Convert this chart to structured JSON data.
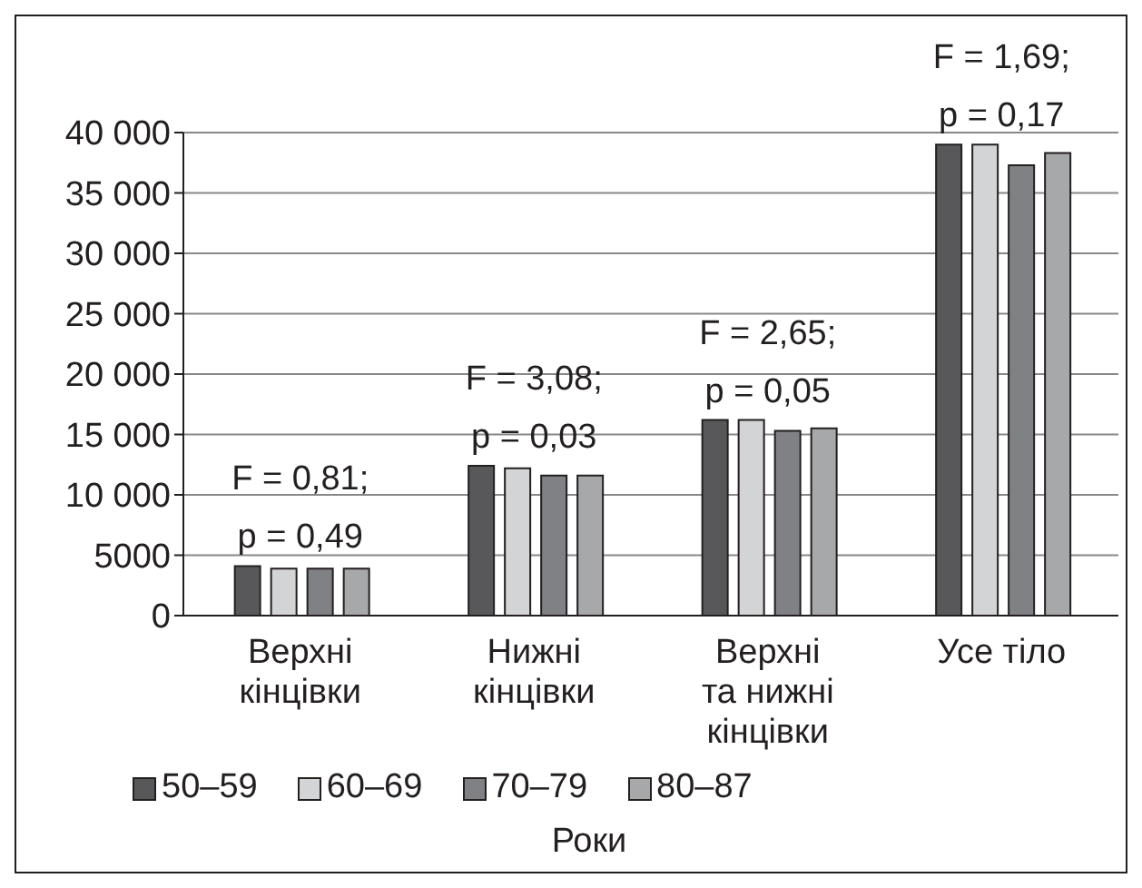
{
  "chart_data": {
    "type": "bar",
    "categories": [
      "Верхні кінцівки",
      "Нижні кінцівки",
      "Верхні та нижні кінцівки",
      "Усе тіло"
    ],
    "series": [
      {
        "name": "50–59",
        "color": "#58585a",
        "values": [
          4100,
          12400,
          16200,
          39000
        ]
      },
      {
        "name": "60–69",
        "color": "#d3d4d6",
        "values": [
          3900,
          12200,
          16200,
          39000
        ]
      },
      {
        "name": "70–79",
        "color": "#808184",
        "values": [
          3900,
          11600,
          15300,
          37300
        ]
      },
      {
        "name": "80–87",
        "color": "#a7a8aa",
        "values": [
          3900,
          11600,
          15500,
          38300
        ]
      }
    ],
    "ylim": [
      0,
      40000
    ],
    "yticks": [
      0,
      5000,
      {
        "value": 10000,
        "label": "10 000"
      },
      {
        "value": 15000,
        "label": "15 000"
      },
      {
        "value": 20000,
        "label": "20 000"
      },
      {
        "value": 25000,
        "label": "25 000"
      },
      {
        "value": 30000,
        "label": "30 000"
      },
      {
        "value": 35000,
        "label": "35 000"
      },
      {
        "value": 40000,
        "label": "40 000"
      }
    ],
    "grid": "y",
    "legend": "bottom",
    "xlabel": "Роки",
    "annotations": [
      {
        "text": "F = 0,81;\np = 0,49",
        "x": "Верхні кінцівки",
        "y": 4100
      },
      {
        "text": "F = 3,08;\np = 0,03",
        "x": "Нижні кінцівки",
        "y": 12400
      },
      {
        "text": "F = 2,65;\np = 0,05",
        "x": "Верхні та нижні кінцівки",
        "y": 16200
      },
      {
        "text": "F = 1,69;\np = 0,17",
        "x": "Усе тіло",
        "y": 39000
      }
    ]
  }
}
